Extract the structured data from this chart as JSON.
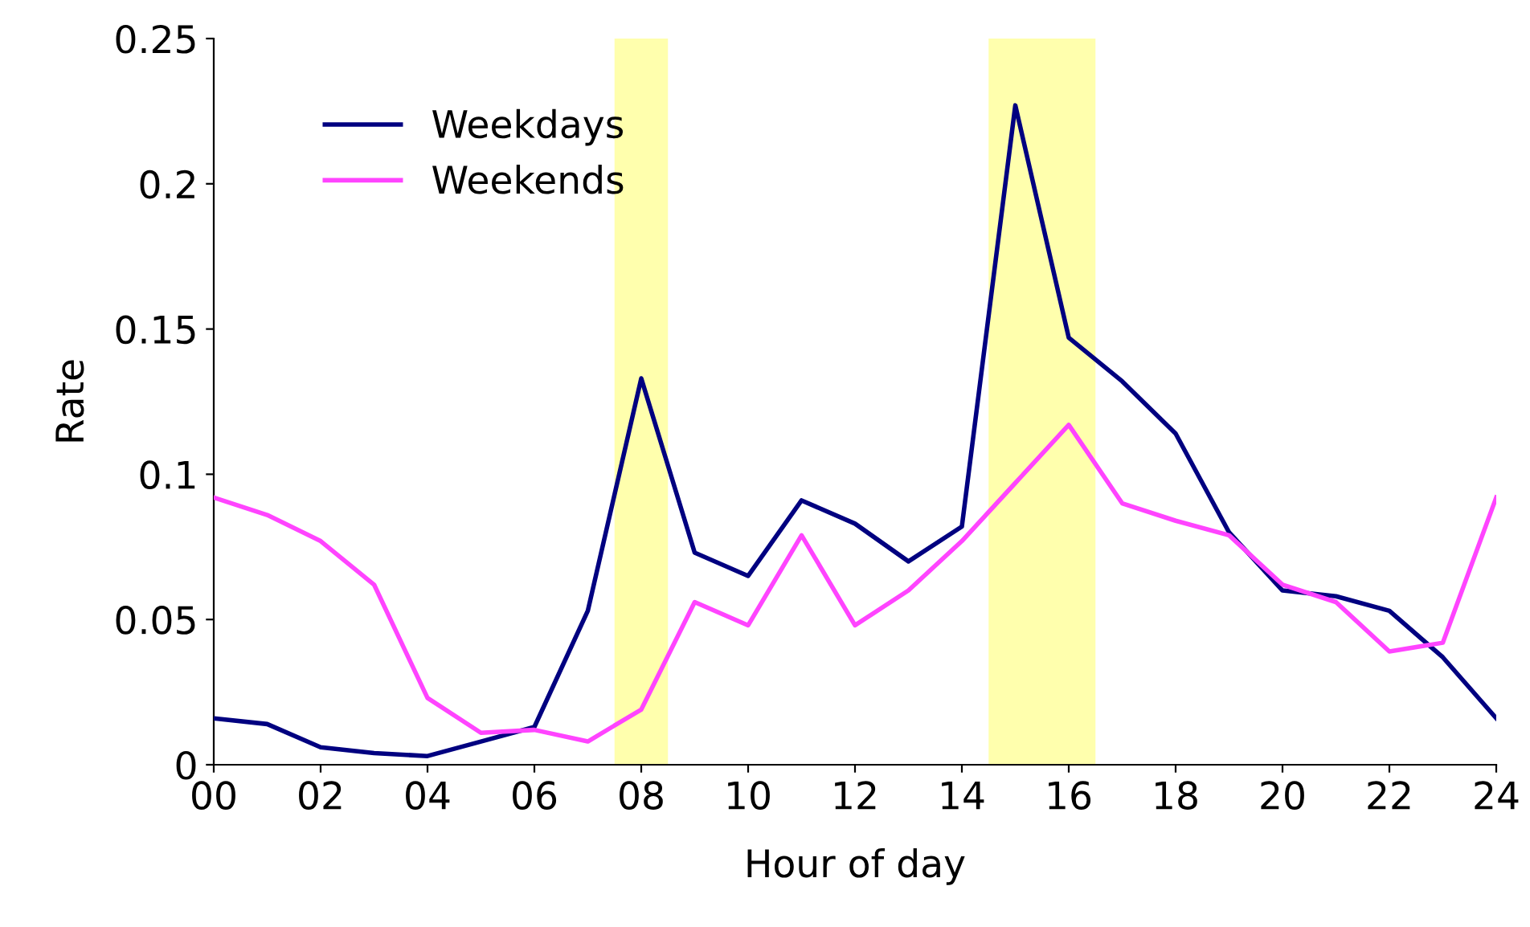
{
  "chart_data": {
    "type": "line",
    "xlabel": "Hour of day",
    "ylabel": "Rate",
    "x": [
      0,
      1,
      2,
      3,
      4,
      5,
      6,
      7,
      8,
      9,
      10,
      11,
      12,
      13,
      14,
      15,
      16,
      17,
      18,
      19,
      20,
      21,
      22,
      23,
      24
    ],
    "series": [
      {
        "name": "Weekdays",
        "color": "#000080",
        "values": [
          0.016,
          0.014,
          0.006,
          0.004,
          0.003,
          0.008,
          0.013,
          0.053,
          0.133,
          0.073,
          0.065,
          0.091,
          0.083,
          0.07,
          0.082,
          0.227,
          0.147,
          0.132,
          0.114,
          0.08,
          0.06,
          0.058,
          0.053,
          0.037,
          0.016
        ]
      },
      {
        "name": "Weekends",
        "color": "#ff44ff",
        "values": [
          0.092,
          0.086,
          0.077,
          0.062,
          0.023,
          0.011,
          0.012,
          0.008,
          0.019,
          0.056,
          0.048,
          0.079,
          0.048,
          0.06,
          0.077,
          0.097,
          0.117,
          0.09,
          0.084,
          0.079,
          0.062,
          0.056,
          0.039,
          0.042,
          0.092
        ]
      }
    ],
    "bands": [
      {
        "axis": "x",
        "from": 7.5,
        "to": 8.5,
        "color": "#ffff99"
      },
      {
        "axis": "x",
        "from": 14.5,
        "to": 16.5,
        "color": "#ffff99"
      }
    ],
    "xlim": [
      0,
      24
    ],
    "xticks": [
      {
        "value": 0,
        "label": "00"
      },
      {
        "value": 2,
        "label": "02"
      },
      {
        "value": 4,
        "label": "04"
      },
      {
        "value": 6,
        "label": "06"
      },
      {
        "value": 8,
        "label": "08"
      },
      10,
      12,
      14,
      16,
      18,
      20,
      22,
      24
    ],
    "ylim": [
      0,
      0.25
    ],
    "yticks": [
      {
        "value": 0,
        "label": "0"
      },
      0.05,
      0.1,
      0.15,
      0.2,
      0.25
    ],
    "grid": false,
    "legend": "top left",
    "marker": "none",
    "line_style": "solid"
  }
}
